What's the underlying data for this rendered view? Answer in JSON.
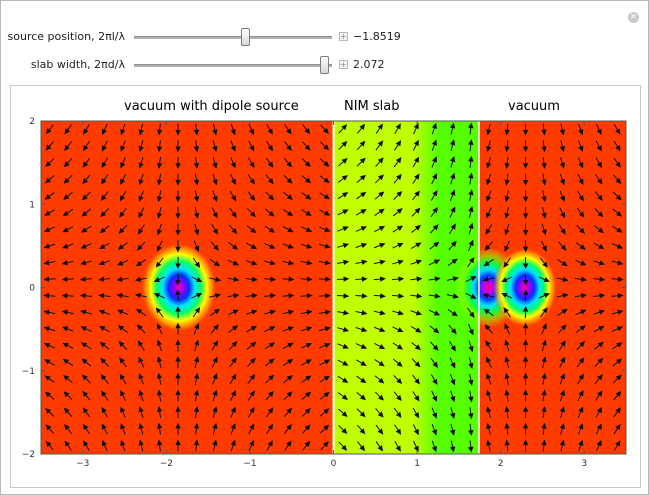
{
  "controls": {
    "source_position": {
      "label": "source position, 2πl/λ",
      "value": "−1.8519",
      "fraction": 0.56
    },
    "slab_width": {
      "label": "slab width, 2πd/λ",
      "value": "2.072",
      "fraction": 0.96
    }
  },
  "plot": {
    "titles": {
      "left": "vacuum with dipole source",
      "middle": "NIM slab",
      "right": "vacuum"
    },
    "x_ticks": [
      {
        "v": -3,
        "label": "−3"
      },
      {
        "v": -2,
        "label": "−2"
      },
      {
        "v": -1,
        "label": "−1"
      },
      {
        "v": 0,
        "label": "0"
      },
      {
        "v": 1,
        "label": "1"
      },
      {
        "v": 2,
        "label": "2"
      },
      {
        "v": 3,
        "label": "3"
      }
    ],
    "y_ticks": [
      {
        "v": 2,
        "label": "2"
      },
      {
        "v": 1,
        "label": "1"
      },
      {
        "v": 0,
        "label": "0"
      },
      {
        "v": -1,
        "label": "−1"
      },
      {
        "v": -2,
        "label": "−2"
      }
    ],
    "xlim": [
      -3.5,
      3.5
    ],
    "ylim": [
      -2,
      2
    ],
    "source_x": -1.8519,
    "slab_width": 2.072,
    "focus_inside_x": 1.85,
    "focus_outside_x": 2.29,
    "colors": {
      "vacuum": "#ff3b00",
      "slab": "#bfff00",
      "slab_band": "#55ff00",
      "divider": "#ffffff",
      "arrow": "#111111"
    }
  }
}
